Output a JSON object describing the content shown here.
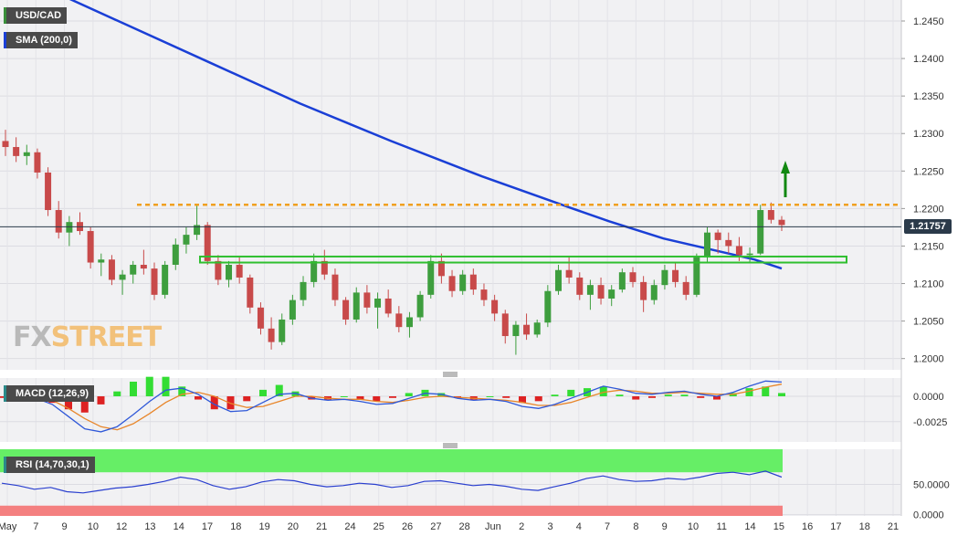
{
  "labels": {
    "symbol": "USD/CAD",
    "sma": "SMA (200,0)",
    "macd": "MACD (12,26,9)",
    "rsi": "RSI (14,70,30,1)",
    "last_price": "1.21757",
    "brand_fx": "FX",
    "brand_street": "STREET"
  },
  "colors": {
    "sma": "#1a3fd6",
    "up": "#3e9e3e",
    "down": "#c84a4a",
    "resistance": "#f0a020",
    "support": "#2fbf2f",
    "arrow": "#118811",
    "macd_line": "#2f58d8",
    "signal_line": "#e8862a",
    "hist_up": "#33dd33",
    "hist_down": "#dd2222",
    "rsi_line": "#2a3fcf",
    "overbought_zone": "#66ee66",
    "oversold_zone": "#f48080"
  },
  "chart_data": [
    {
      "type": "candlestick",
      "title": "USD/CAD",
      "x_ticks": [
        "May",
        "7",
        "9",
        "10",
        "12",
        "13",
        "14",
        "17",
        "18",
        "19",
        "20",
        "21",
        "24",
        "25",
        "26",
        "27",
        "28",
        "Jun",
        "2",
        "3",
        "4",
        "7",
        "8",
        "9",
        "10",
        "11",
        "14",
        "15",
        "16",
        "17",
        "18",
        "21"
      ],
      "y_ticks": [
        1.2,
        1.205,
        1.21,
        1.215,
        1.22,
        1.225,
        1.23,
        1.235,
        1.24,
        1.245
      ],
      "ylim": [
        1.1985,
        1.2478
      ],
      "grid": true,
      "last_price": 1.21757,
      "resistance_level": 1.2205,
      "support_zone": [
        1.2128,
        1.2136
      ],
      "sma_200": [
        [
          0,
          1.2505
        ],
        [
          5,
          1.245
        ],
        [
          10,
          1.2395
        ],
        [
          15,
          1.234
        ],
        [
          20,
          1.229
        ],
        [
          25,
          1.2243
        ],
        [
          30,
          1.22
        ],
        [
          32,
          1.2183
        ],
        [
          35,
          1.216
        ],
        [
          40,
          1.2132
        ],
        [
          41.5,
          1.212
        ]
      ],
      "candles": [
        [
          1.229,
          1.2305,
          1.227,
          1.2282
        ],
        [
          1.2282,
          1.2295,
          1.2262,
          1.227
        ],
        [
          1.227,
          1.2285,
          1.2258,
          1.2275
        ],
        [
          1.2275,
          1.228,
          1.224,
          1.2248
        ],
        [
          1.2248,
          1.2255,
          1.219,
          1.2198
        ],
        [
          1.2198,
          1.221,
          1.216,
          1.2168
        ],
        [
          1.2168,
          1.219,
          1.215,
          1.2182
        ],
        [
          1.2182,
          1.2195,
          1.2165,
          1.217
        ],
        [
          1.217,
          1.2175,
          1.212,
          1.2128
        ],
        [
          1.2128,
          1.214,
          1.211,
          1.2132
        ],
        [
          1.2132,
          1.2138,
          1.2098,
          1.2105
        ],
        [
          1.2105,
          1.2118,
          1.2085,
          1.2112
        ],
        [
          1.2112,
          1.213,
          1.21,
          1.2125
        ],
        [
          1.2125,
          1.2145,
          1.2112,
          1.212
        ],
        [
          1.212,
          1.2128,
          1.2078,
          1.2085
        ],
        [
          1.2085,
          1.213,
          1.208,
          1.2125
        ],
        [
          1.2125,
          1.216,
          1.2118,
          1.2152
        ],
        [
          1.2152,
          1.2175,
          1.214,
          1.2165
        ],
        [
          1.2165,
          1.2205,
          1.2158,
          1.2178
        ],
        [
          1.2178,
          1.2182,
          1.2125,
          1.213
        ],
        [
          1.213,
          1.2138,
          1.2098,
          1.2105
        ],
        [
          1.2105,
          1.213,
          1.2095,
          1.2125
        ],
        [
          1.2125,
          1.2135,
          1.21,
          1.2108
        ],
        [
          1.2108,
          1.2112,
          1.206,
          1.2068
        ],
        [
          1.2068,
          1.2075,
          1.2032,
          1.204
        ],
        [
          1.204,
          1.2055,
          1.2012,
          1.2022
        ],
        [
          1.2022,
          1.206,
          1.2018,
          1.2052
        ],
        [
          1.2052,
          1.2085,
          1.2045,
          1.2078
        ],
        [
          1.2078,
          1.211,
          1.207,
          1.2102
        ],
        [
          1.2102,
          1.214,
          1.2095,
          1.213
        ],
        [
          1.213,
          1.2145,
          1.2105,
          1.2112
        ],
        [
          1.2112,
          1.212,
          1.207,
          1.2078
        ],
        [
          1.2078,
          1.2082,
          1.2045,
          1.2052
        ],
        [
          1.2052,
          1.2095,
          1.2048,
          1.2088
        ],
        [
          1.2088,
          1.2098,
          1.206,
          1.2068
        ],
        [
          1.2068,
          1.2088,
          1.204,
          1.208
        ],
        [
          1.208,
          1.2092,
          1.2055,
          1.206
        ],
        [
          1.206,
          1.207,
          1.2035,
          1.2042
        ],
        [
          1.2042,
          1.2062,
          1.2028,
          1.2055
        ],
        [
          1.2055,
          1.209,
          1.205,
          1.2085
        ],
        [
          1.2085,
          1.2138,
          1.208,
          1.213
        ],
        [
          1.213,
          1.214,
          1.21,
          1.211
        ],
        [
          1.211,
          1.2118,
          1.2082,
          1.209
        ],
        [
          1.209,
          1.2118,
          1.2085,
          1.2112
        ],
        [
          1.2112,
          1.212,
          1.2085,
          1.2092
        ],
        [
          1.2092,
          1.21,
          1.207,
          1.2078
        ],
        [
          1.2078,
          1.2085,
          1.205,
          1.206
        ],
        [
          1.206,
          1.2065,
          1.202,
          1.203
        ],
        [
          1.203,
          1.205,
          1.2005,
          1.2045
        ],
        [
          1.2045,
          1.206,
          1.2025,
          1.2032
        ],
        [
          1.2032,
          1.2052,
          1.2028,
          1.2048
        ],
        [
          1.2048,
          1.2098,
          1.2042,
          1.209
        ],
        [
          1.209,
          1.2125,
          1.2085,
          1.2118
        ],
        [
          1.2118,
          1.2135,
          1.21,
          1.2108
        ],
        [
          1.2108,
          1.2115,
          1.2078,
          1.2085
        ],
        [
          1.2085,
          1.2105,
          1.2065,
          1.2098
        ],
        [
          1.2098,
          1.2108,
          1.2072,
          1.208
        ],
        [
          1.208,
          1.2098,
          1.207,
          1.2092
        ],
        [
          1.2092,
          1.212,
          1.2088,
          1.2115
        ],
        [
          1.2115,
          1.2122,
          1.2095,
          1.2102
        ],
        [
          1.2102,
          1.211,
          1.2062,
          1.2078
        ],
        [
          1.2078,
          1.2105,
          1.2072,
          1.2098
        ],
        [
          1.2098,
          1.2125,
          1.2092,
          1.2118
        ],
        [
          1.2118,
          1.2128,
          1.2095,
          1.2102
        ],
        [
          1.2102,
          1.211,
          1.2078,
          1.2085
        ],
        [
          1.2085,
          1.214,
          1.2082,
          1.2135
        ],
        [
          1.2135,
          1.2175,
          1.2128,
          1.2168
        ],
        [
          1.2168,
          1.2172,
          1.214,
          1.2158
        ],
        [
          1.2158,
          1.2168,
          1.214,
          1.215
        ],
        [
          1.215,
          1.2162,
          1.213,
          1.2138
        ],
        [
          1.2138,
          1.2148,
          1.2128,
          1.214
        ],
        [
          1.214,
          1.2205,
          1.2138,
          1.2198
        ],
        [
          1.2198,
          1.2208,
          1.218,
          1.2185
        ],
        [
          1.2185,
          1.219,
          1.217,
          1.2178
        ]
      ]
    },
    {
      "type": "line",
      "title": "MACD (12,26,9)",
      "y_ticks": [
        0.0,
        -0.0025
      ],
      "ylim": [
        -0.0045,
        0.0018
      ],
      "series": [
        {
          "values": [
            0.0002,
            0.0001,
            -0.0002,
            -0.0008,
            -0.002,
            -0.0032,
            -0.0035,
            -0.003,
            -0.0018,
            -0.0005,
            0.0006,
            0.0008,
            0.0002,
            -0.0008,
            -0.0015,
            -0.0014,
            -0.0006,
            0.0002,
            0.0003,
            -0.0002,
            -0.0004,
            -0.0003,
            -0.0005,
            -0.0008,
            -0.0007,
            -0.0002,
            0.0003,
            0.0002,
            -0.0002,
            -0.0004,
            -0.0003,
            -0.0005,
            -0.001,
            -0.0012,
            -0.0008,
            -0.0002,
            0.0004,
            0.001,
            0.0007,
            0.0003,
            0.0002,
            0.0004,
            0.0005,
            0.0002,
            0.0,
            0.0004,
            0.001,
            0.0015,
            0.0014
          ]
        },
        {
          "values": [
            0.0003,
            0.0002,
            0.0,
            -0.0004,
            -0.0012,
            -0.0022,
            -0.003,
            -0.0033,
            -0.0027,
            -0.0017,
            -0.0006,
            0.0002,
            0.0004,
            0.0,
            -0.0007,
            -0.0011,
            -0.001,
            -0.0005,
            0.0,
            0.0,
            -0.0002,
            -0.0003,
            -0.0003,
            -0.0005,
            -0.0006,
            -0.0004,
            -0.0001,
            0.0,
            -0.0001,
            -0.0002,
            -0.0003,
            -0.0004,
            -0.0006,
            -0.0009,
            -0.0009,
            -0.0006,
            -0.0001,
            0.0004,
            0.0006,
            0.0005,
            0.0003,
            0.0003,
            0.0004,
            0.0003,
            0.0002,
            0.0002,
            0.0005,
            0.0009,
            0.0012
          ]
        }
      ]
    },
    {
      "type": "line",
      "title": "RSI (14,70,30,1)",
      "y_ticks": [
        0.0,
        50.0
      ],
      "ylim": [
        -2,
        108
      ],
      "overbought": 70,
      "oversold": 30,
      "series": [
        {
          "values": [
            52,
            48,
            42,
            45,
            38,
            36,
            40,
            44,
            46,
            50,
            55,
            62,
            58,
            48,
            42,
            46,
            54,
            58,
            56,
            50,
            46,
            48,
            52,
            50,
            45,
            48,
            55,
            56,
            52,
            48,
            50,
            47,
            42,
            40,
            46,
            52,
            60,
            64,
            58,
            55,
            56,
            60,
            58,
            62,
            68,
            70,
            66,
            72,
            62
          ]
        }
      ]
    }
  ]
}
